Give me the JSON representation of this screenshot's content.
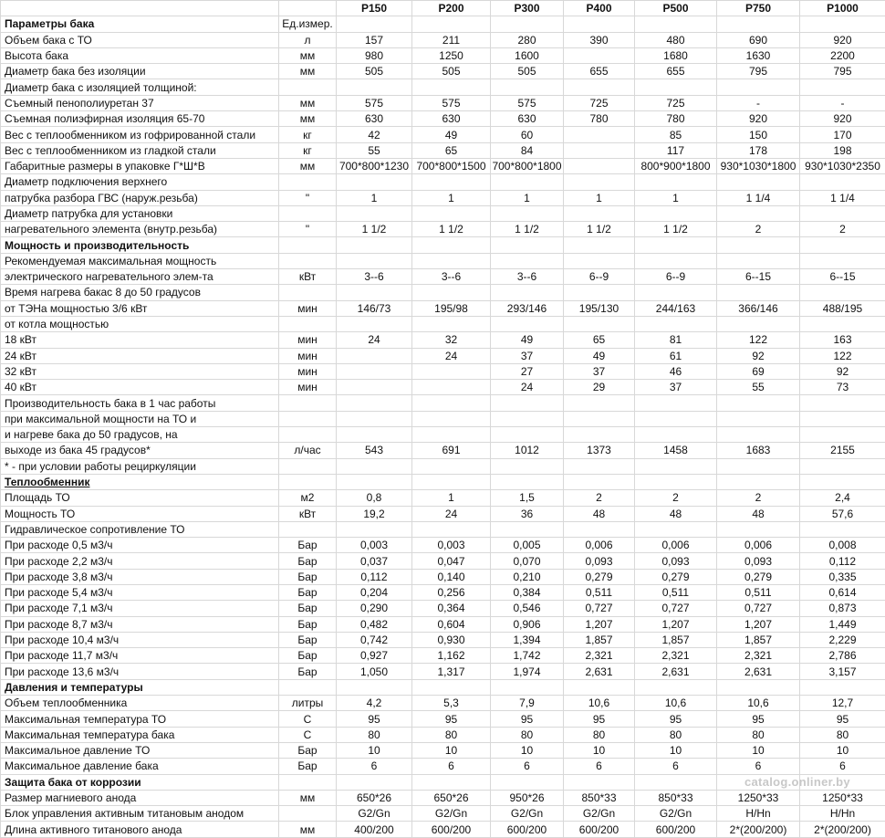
{
  "header": {
    "label": "",
    "unit": "",
    "models": [
      "P150",
      "P200",
      "P300",
      "P400",
      "P500",
      "P750",
      "P1000"
    ]
  },
  "rows": [
    {
      "label": "Параметры бака",
      "unit": "Ед.измер.",
      "values": [
        "",
        "",
        "",
        "",
        "",
        "",
        ""
      ],
      "kind": "section"
    },
    {
      "label": "Объем бака с ТО",
      "unit": "л",
      "values": [
        "157",
        "211",
        "280",
        "390",
        "480",
        "690",
        "920"
      ]
    },
    {
      "label": "Высота бака",
      "unit": "мм",
      "values": [
        "980",
        "1250",
        "1600",
        "",
        "1680",
        "1630",
        "2200"
      ]
    },
    {
      "label": "Диаметр бака без изоляции",
      "unit": "мм",
      "values": [
        "505",
        "505",
        "505",
        "655",
        "655",
        "795",
        "795"
      ]
    },
    {
      "label": "Диаметр бака с изоляцией толщиной:",
      "unit": "",
      "values": [
        "",
        "",
        "",
        "",
        "",
        "",
        ""
      ]
    },
    {
      "label": "Съемный пенополиуретан 37",
      "unit": "мм",
      "values": [
        "575",
        "575",
        "575",
        "725",
        "725",
        "-",
        "-"
      ]
    },
    {
      "label": "Съемная полиэфирная изоляция 65-70",
      "unit": "мм",
      "values": [
        "630",
        "630",
        "630",
        "780",
        "780",
        "920",
        "920"
      ]
    },
    {
      "label": "Вес с теплообменником из гофрированной стали",
      "unit": "кг",
      "values": [
        "42",
        "49",
        "60",
        "",
        "85",
        "150",
        "170"
      ]
    },
    {
      "label": "Вес с теплообменником из гладкой стали",
      "unit": "кг",
      "values": [
        "55",
        "65",
        "84",
        "",
        "117",
        "178",
        "198"
      ]
    },
    {
      "label": "Габаритные размеры в упаковке Г*Ш*В",
      "unit": "мм",
      "values": [
        "700*800*1230",
        "700*800*1500",
        "700*800*1800",
        "",
        "800*900*1800",
        "930*1030*1800",
        "930*1030*2350"
      ]
    },
    {
      "label": "Диаметр подключения верхнего",
      "unit": "",
      "values": [
        "",
        "",
        "",
        "",
        "",
        "",
        ""
      ]
    },
    {
      "label": "патрубка разбора ГВС (наруж.резьба)",
      "unit": "\"",
      "values": [
        "1",
        "1",
        "1",
        "1",
        "1",
        "1 1/4",
        "1 1/4"
      ]
    },
    {
      "label": "Диаметр патрубка для установки",
      "unit": "",
      "values": [
        "",
        "",
        "",
        "",
        "",
        "",
        ""
      ]
    },
    {
      "label": "нагревательного элемента (внутр.резьба)",
      "unit": "\"",
      "values": [
        "1 1/2",
        "1 1/2",
        "1 1/2",
        "1 1/2",
        "1 1/2",
        "2",
        "2"
      ]
    },
    {
      "label": "Мощность и производительность",
      "unit": "",
      "values": [
        "",
        "",
        "",
        "",
        "",
        "",
        ""
      ],
      "kind": "section"
    },
    {
      "label": "Рекомендуемая максимальная мощность",
      "unit": "",
      "values": [
        "",
        "",
        "",
        "",
        "",
        "",
        ""
      ]
    },
    {
      "label": "электрического нагревательного элем-та",
      "unit": "кВт",
      "values": [
        "3--6",
        "3--6",
        "3--6",
        "6--9",
        "6--9",
        "6--15",
        "6--15"
      ]
    },
    {
      "label": "Время нагрева бакас 8 до 50 градусов",
      "unit": "",
      "values": [
        "",
        "",
        "",
        "",
        "",
        "",
        ""
      ]
    },
    {
      "label": "от ТЭНа мощностью 3/6 кВт",
      "unit": "мин",
      "values": [
        "146/73",
        "195/98",
        "293/146",
        "195/130",
        "244/163",
        "366/146",
        "488/195"
      ]
    },
    {
      "label": "от котла мощностью",
      "unit": "",
      "values": [
        "",
        "",
        "",
        "",
        "",
        "",
        ""
      ]
    },
    {
      "label": "18 кВт",
      "unit": "мин",
      "values": [
        "24",
        "32",
        "49",
        "65",
        "81",
        "122",
        "163"
      ]
    },
    {
      "label": "24 кВт",
      "unit": "мин",
      "values": [
        "",
        "24",
        "37",
        "49",
        "61",
        "92",
        "122"
      ]
    },
    {
      "label": "32 кВт",
      "unit": "мин",
      "values": [
        "",
        "",
        "27",
        "37",
        "46",
        "69",
        "92"
      ]
    },
    {
      "label": "40 кВт",
      "unit": "мин",
      "values": [
        "",
        "",
        "24",
        "29",
        "37",
        "55",
        "73"
      ]
    },
    {
      "label": "Производительность бака в 1 час работы",
      "unit": "",
      "values": [
        "",
        "",
        "",
        "",
        "",
        "",
        ""
      ]
    },
    {
      "label": "при максимальной мощности на ТО и",
      "unit": "",
      "values": [
        "",
        "",
        "",
        "",
        "",
        "",
        ""
      ]
    },
    {
      "label": "и нагреве бака до 50 градусов, на",
      "unit": "",
      "values": [
        "",
        "",
        "",
        "",
        "",
        "",
        ""
      ]
    },
    {
      "label": "выходе из бака 45 градусов*",
      "unit": "л/час",
      "values": [
        "543",
        "691",
        "1012",
        "1373",
        "1458",
        "1683",
        "2155"
      ]
    },
    {
      "label": "* - при условии работы рециркуляции",
      "unit": "",
      "values": [
        "",
        "",
        "",
        "",
        "",
        "",
        ""
      ]
    },
    {
      "label": "Теплообменник",
      "unit": "",
      "values": [
        "",
        "",
        "",
        "",
        "",
        "",
        ""
      ],
      "kind": "section-ul"
    },
    {
      "label": "Площадь ТО",
      "unit": "м2",
      "values": [
        "0,8",
        "1",
        "1,5",
        "2",
        "2",
        "2",
        "2,4"
      ]
    },
    {
      "label": "Мощность ТО",
      "unit": "кВт",
      "values": [
        "19,2",
        "24",
        "36",
        "48",
        "48",
        "48",
        "57,6"
      ]
    },
    {
      "label": "Гидравлическое сопротивление ТО",
      "unit": "",
      "values": [
        "",
        "",
        "",
        "",
        "",
        "",
        ""
      ]
    },
    {
      "label": "При расходе 0,5 м3/ч",
      "unit": "Бар",
      "values": [
        "0,003",
        "0,003",
        "0,005",
        "0,006",
        "0,006",
        "0,006",
        "0,008"
      ]
    },
    {
      "label": "При расходе 2,2 м3/ч",
      "unit": "Бар",
      "values": [
        "0,037",
        "0,047",
        "0,070",
        "0,093",
        "0,093",
        "0,093",
        "0,112"
      ]
    },
    {
      "label": "При расходе 3,8 м3/ч",
      "unit": "Бар",
      "values": [
        "0,112",
        "0,140",
        "0,210",
        "0,279",
        "0,279",
        "0,279",
        "0,335"
      ]
    },
    {
      "label": "При расходе 5,4 м3/ч",
      "unit": "Бар",
      "values": [
        "0,204",
        "0,256",
        "0,384",
        "0,511",
        "0,511",
        "0,511",
        "0,614"
      ]
    },
    {
      "label": "При расходе 7,1 м3/ч",
      "unit": "Бар",
      "values": [
        "0,290",
        "0,364",
        "0,546",
        "0,727",
        "0,727",
        "0,727",
        "0,873"
      ]
    },
    {
      "label": "При расходе 8,7 м3/ч",
      "unit": "Бар",
      "values": [
        "0,482",
        "0,604",
        "0,906",
        "1,207",
        "1,207",
        "1,207",
        "1,449"
      ]
    },
    {
      "label": "При расходе 10,4 м3/ч",
      "unit": "Бар",
      "values": [
        "0,742",
        "0,930",
        "1,394",
        "1,857",
        "1,857",
        "1,857",
        "2,229"
      ]
    },
    {
      "label": "При расходе 11,7 м3/ч",
      "unit": "Бар",
      "values": [
        "0,927",
        "1,162",
        "1,742",
        "2,321",
        "2,321",
        "2,321",
        "2,786"
      ]
    },
    {
      "label": "При расходе 13,6 м3/ч",
      "unit": "Бар",
      "values": [
        "1,050",
        "1,317",
        "1,974",
        "2,631",
        "2,631",
        "2,631",
        "3,157"
      ]
    },
    {
      "label": "Давления и температуры",
      "unit": "",
      "values": [
        "",
        "",
        "",
        "",
        "",
        "",
        ""
      ],
      "kind": "section"
    },
    {
      "label": "Объем теплообменника",
      "unit": "литры",
      "values": [
        "4,2",
        "5,3",
        "7,9",
        "10,6",
        "10,6",
        "10,6",
        "12,7"
      ]
    },
    {
      "label": "Максимальная температура ТО",
      "unit": "С",
      "values": [
        "95",
        "95",
        "95",
        "95",
        "95",
        "95",
        "95"
      ]
    },
    {
      "label": "Максимальная температура бака",
      "unit": "С",
      "values": [
        "80",
        "80",
        "80",
        "80",
        "80",
        "80",
        "80"
      ]
    },
    {
      "label": "Максимальное давление ТО",
      "unit": "Бар",
      "values": [
        "10",
        "10",
        "10",
        "10",
        "10",
        "10",
        "10"
      ]
    },
    {
      "label": "Максимальное давление бака",
      "unit": "Бар",
      "values": [
        "6",
        "6",
        "6",
        "6",
        "6",
        "6",
        "6"
      ]
    },
    {
      "label": "Защита бака от коррозии",
      "unit": "",
      "values": [
        "",
        "",
        "",
        "",
        "",
        "",
        ""
      ],
      "kind": "section"
    },
    {
      "label": "Размер магниевого анода",
      "unit": "мм",
      "values": [
        "650*26",
        "650*26",
        "950*26",
        "850*33",
        "850*33",
        "1250*33",
        "1250*33"
      ]
    },
    {
      "label": "Блок управления активным титановым анодом",
      "unit": "",
      "values": [
        "G2/Gn",
        "G2/Gn",
        "G2/Gn",
        "G2/Gn",
        "G2/Gn",
        "H/Hn",
        "H/Hn"
      ]
    },
    {
      "label": "Длина активного титанового анода",
      "unit": "мм",
      "values": [
        "400/200",
        "600/200",
        "600/200",
        "600/200",
        "600/200",
        "2*(200/200)",
        "2*(200/200)"
      ]
    }
  ],
  "watermark": "catalog.onliner.by"
}
